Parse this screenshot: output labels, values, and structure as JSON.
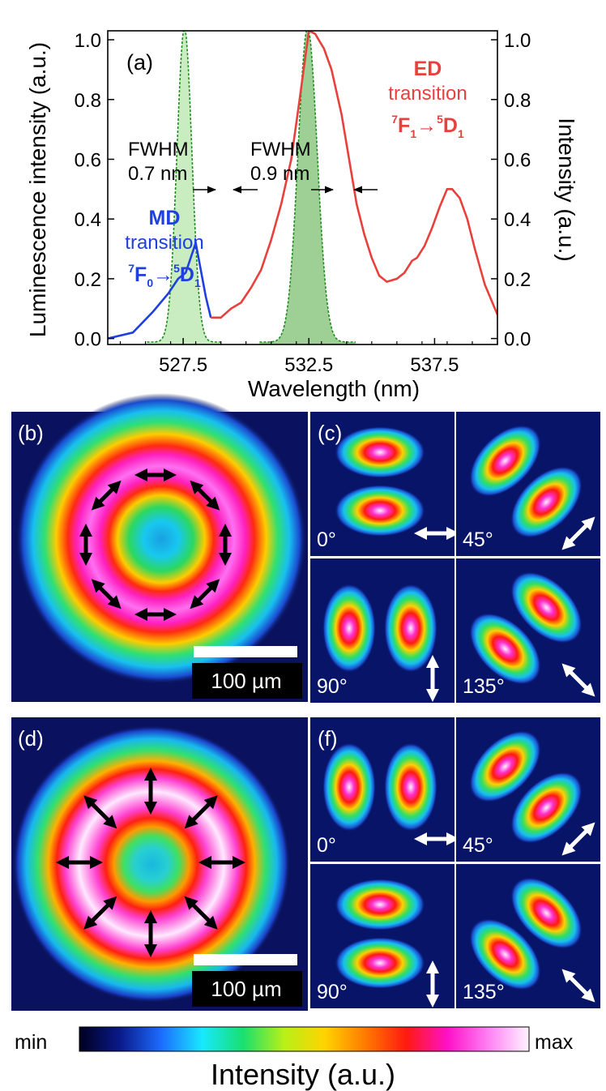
{
  "chart_data": {
    "type": "line",
    "panel": "(a)",
    "xlabel": "Wavelength (nm)",
    "ylabel_left": "Luminescence intensity (a.u.)",
    "ylabel_right": "Intensity (a.u.)",
    "xlim": [
      524.5,
      540
    ],
    "ylim": [
      -0.02,
      1.03
    ],
    "x_ticks": [
      527.5,
      532.5,
      537.5
    ],
    "x_tick_labels": [
      "527.5",
      "532.5",
      "537.5"
    ],
    "y_ticks": [
      0.0,
      0.2,
      0.4,
      0.6,
      0.8,
      1.0
    ],
    "y_tick_labels": [
      "0.0",
      "0.2",
      "0.4",
      "0.6",
      "0.8",
      "1.0"
    ],
    "series": [
      {
        "name": "MD transition",
        "color": "#1f3fe0",
        "x": [
          524.5,
          525.5,
          526.3,
          526.9,
          527.3,
          527.6,
          528.0,
          528.4,
          528.6
        ],
        "y": [
          0.0,
          0.02,
          0.09,
          0.15,
          0.2,
          0.22,
          0.32,
          0.14,
          0.07
        ]
      },
      {
        "name": "ED transition",
        "color": "#e8403c",
        "x": [
          528.6,
          529.0,
          529.4,
          529.8,
          530.2,
          530.6,
          531.0,
          531.4,
          531.8,
          532.1,
          532.5,
          532.75,
          533.1,
          533.4,
          533.8,
          534.1,
          534.4,
          534.7,
          535.0,
          535.3,
          535.6,
          536.0,
          536.3,
          536.6,
          536.8,
          537.1,
          537.4,
          537.7,
          538.0,
          538.2,
          538.5,
          538.8,
          539.1,
          539.5,
          540.0
        ],
        "y": [
          0.07,
          0.07,
          0.1,
          0.12,
          0.17,
          0.23,
          0.33,
          0.45,
          0.6,
          0.78,
          1.03,
          1.02,
          0.97,
          0.9,
          0.75,
          0.6,
          0.45,
          0.35,
          0.27,
          0.21,
          0.19,
          0.2,
          0.22,
          0.26,
          0.27,
          0.31,
          0.37,
          0.44,
          0.5,
          0.5,
          0.47,
          0.4,
          0.3,
          0.18,
          0.08
        ]
      },
      {
        "name": "Reference peak 1 (FWHM 0.7 nm)",
        "color": "#1e8c1e",
        "fill": "#c9edc0",
        "center": 527.55,
        "fwhm": 0.7,
        "peak": 1.05
      },
      {
        "name": "Reference peak 2 (FWHM 0.9 nm)",
        "color": "#1e8c1e",
        "fill": "#9ecf95",
        "center": 532.45,
        "fwhm": 0.9,
        "peak": 1.05
      }
    ],
    "annotations": {
      "fwhm_left": [
        "FWHM",
        "0.7 nm"
      ],
      "fwhm_right": [
        "FWHM",
        "0.9 nm"
      ],
      "md": {
        "title": "MD",
        "word": "transition",
        "from_sup": "7",
        "from": "F",
        "from_sub": "0",
        "arrow": "→",
        "to_sup": "5",
        "to": "D",
        "to_sub": "1"
      },
      "ed": {
        "title": "ED",
        "word": "transition",
        "from_sup": "7",
        "from": "F",
        "from_sub": "1",
        "arrow": "→",
        "to_sup": "5",
        "to": "D",
        "to_sub": "1"
      }
    }
  },
  "images": {
    "b": {
      "label": "(b)",
      "scale": "100 µm",
      "polarization": "azimuthal"
    },
    "c": {
      "label": "(c)",
      "angles": [
        "0°",
        "45°",
        "90°",
        "135°"
      ]
    },
    "d": {
      "label": "(d)",
      "scale": "100 µm",
      "polarization": "radial"
    },
    "f": {
      "label": "(f)",
      "angles": [
        "0°",
        "45°",
        "90°",
        "135°"
      ]
    }
  },
  "colorbar": {
    "min_label": "min",
    "max_label": "max",
    "title": "Intensity (a.u.)",
    "colors": [
      "#000020",
      "#0a1a8a",
      "#1c6cff",
      "#18e8ff",
      "#18e070",
      "#b8f018",
      "#ffd400",
      "#ff7a00",
      "#ff1a10",
      "#ff10c8",
      "#ff80f4",
      "#fff4ff"
    ]
  }
}
